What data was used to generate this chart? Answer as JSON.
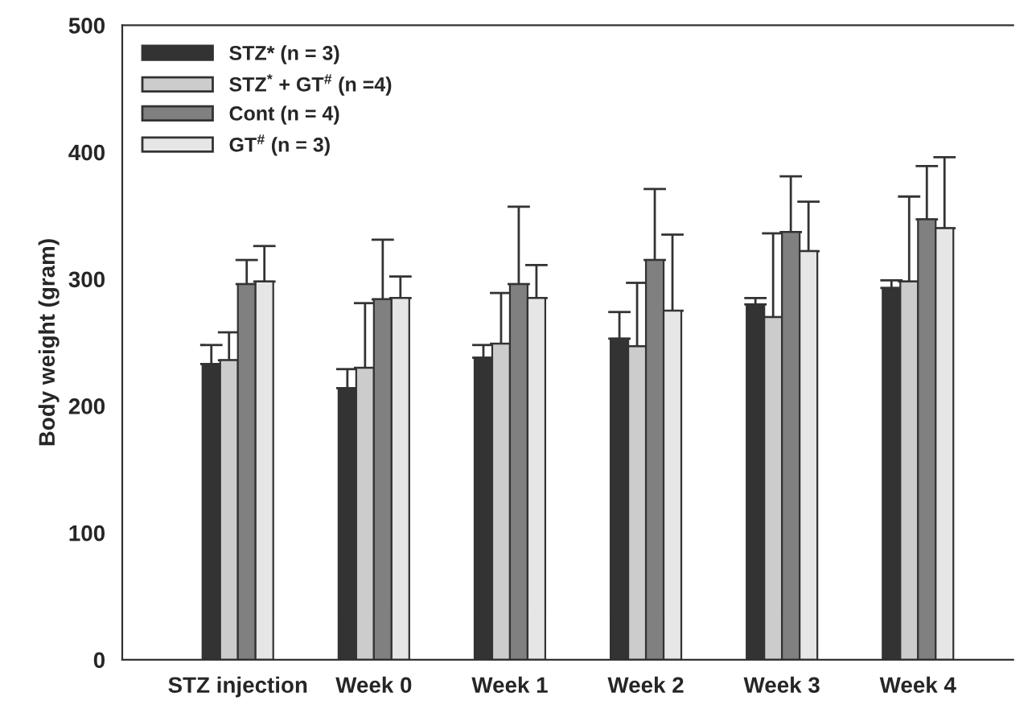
{
  "chart_data": {
    "type": "bar",
    "ylabel": "Body weight (gram)",
    "categories": [
      "STZ injection",
      "Week 0",
      "Week 1",
      "Week 2",
      "Week 3",
      "Week 4"
    ],
    "ylim": [
      0,
      500
    ],
    "yticks": [
      0,
      100,
      200,
      300,
      400,
      500
    ],
    "grid": false,
    "legend": "top left",
    "series": [
      {
        "name": "STZ* (n = 3)",
        "color": "#333333",
        "values": [
          233,
          214,
          238,
          253,
          280,
          293
        ],
        "errors": [
          [
            233,
            248
          ],
          [
            214,
            229
          ],
          [
            238,
            248
          ],
          [
            253,
            274
          ],
          [
            280,
            285
          ],
          [
            293,
            299
          ]
        ]
      },
      {
        "name": "STZ$^{*}$ + GT$^{#}$ (n =4)",
        "color": "#cccccc",
        "values": [
          236,
          230,
          249,
          247,
          270,
          298
        ],
        "errors": [
          [
            236,
            258
          ],
          [
            230,
            281
          ],
          [
            249,
            289
          ],
          [
            247,
            297
          ],
          [
            270,
            336
          ],
          [
            298,
            365
          ]
        ]
      },
      {
        "name": "Cont (n = 4)",
        "color": "#808080",
        "values": [
          296,
          284,
          296,
          315,
          337,
          347
        ],
        "errors": [
          [
            296,
            315
          ],
          [
            284,
            331
          ],
          [
            296,
            357
          ],
          [
            315,
            371
          ],
          [
            337,
            381
          ],
          [
            347,
            389
          ]
        ]
      },
      {
        "name": "GT$^{#}$ (n = 3)",
        "color": "#e6e6e6",
        "values": [
          298,
          285,
          285,
          275,
          322,
          340
        ],
        "errors": [
          [
            298,
            326
          ],
          [
            285,
            302
          ],
          [
            285,
            311
          ],
          [
            275,
            335
          ],
          [
            322,
            361
          ],
          [
            340,
            396
          ]
        ]
      }
    ]
  }
}
